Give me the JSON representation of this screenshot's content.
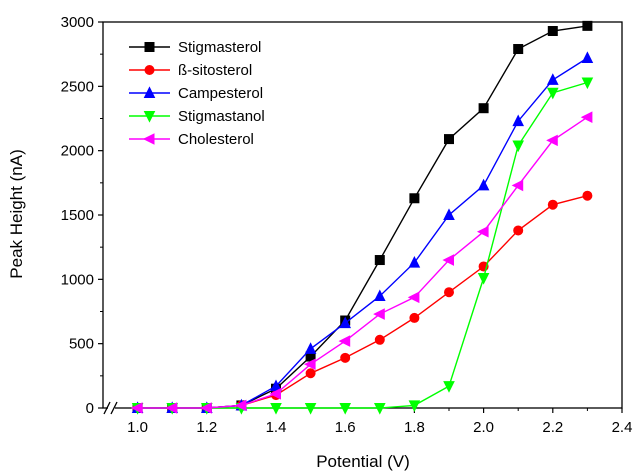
{
  "chart_data": {
    "type": "line",
    "xlabel": "Potential (V)",
    "ylabel": "Peak Height (nA)",
    "xlim": [
      0.9,
      2.4
    ],
    "ylim": [
      0,
      3000
    ],
    "x_axis_break": true,
    "x_ticks": [
      1.0,
      1.2,
      1.4,
      1.6,
      1.8,
      2.0,
      2.2,
      2.4
    ],
    "x_tick_labels": [
      "1.0",
      "1.2",
      "1.4",
      "1.6",
      "1.8",
      "2.0",
      "2.2",
      "2.4"
    ],
    "y_ticks": [
      0,
      500,
      1000,
      1500,
      2000,
      2500,
      3000
    ],
    "y_tick_labels": [
      "0",
      "500",
      "1000",
      "1500",
      "2000",
      "2500",
      "3000"
    ],
    "grid": false,
    "legend_position": "top-left",
    "x": [
      1.0,
      1.1,
      1.2,
      1.3,
      1.4,
      1.5,
      1.6,
      1.7,
      1.8,
      1.9,
      2.0,
      2.1,
      2.2,
      2.3
    ],
    "series": [
      {
        "name": "Stigmasterol",
        "color": "#000000",
        "marker": "square",
        "values": [
          0,
          0,
          0,
          20,
          150,
          400,
          680,
          1150,
          1630,
          2090,
          2330,
          2790,
          2930,
          2970
        ]
      },
      {
        "name": "ß-sitosterol",
        "color": "#ff0000",
        "marker": "circle",
        "values": [
          0,
          0,
          0,
          20,
          100,
          270,
          390,
          530,
          700,
          900,
          1100,
          1380,
          1580,
          1650
        ]
      },
      {
        "name": "Campesterol",
        "color": "#0000ff",
        "marker": "triangle-up",
        "values": [
          0,
          0,
          0,
          20,
          170,
          460,
          660,
          870,
          1130,
          1500,
          1730,
          2230,
          2550,
          2720
        ]
      },
      {
        "name": "Stigmastanol",
        "color": "#00ff00",
        "marker": "triangle-down",
        "values": [
          0,
          0,
          0,
          0,
          0,
          0,
          0,
          0,
          20,
          170,
          1010,
          2040,
          2450,
          2530
        ]
      },
      {
        "name": "Cholesterol",
        "color": "#ff00ff",
        "marker": "triangle-left",
        "values": [
          0,
          0,
          0,
          20,
          110,
          340,
          520,
          730,
          860,
          1150,
          1370,
          1730,
          2080,
          2260
        ]
      }
    ]
  }
}
